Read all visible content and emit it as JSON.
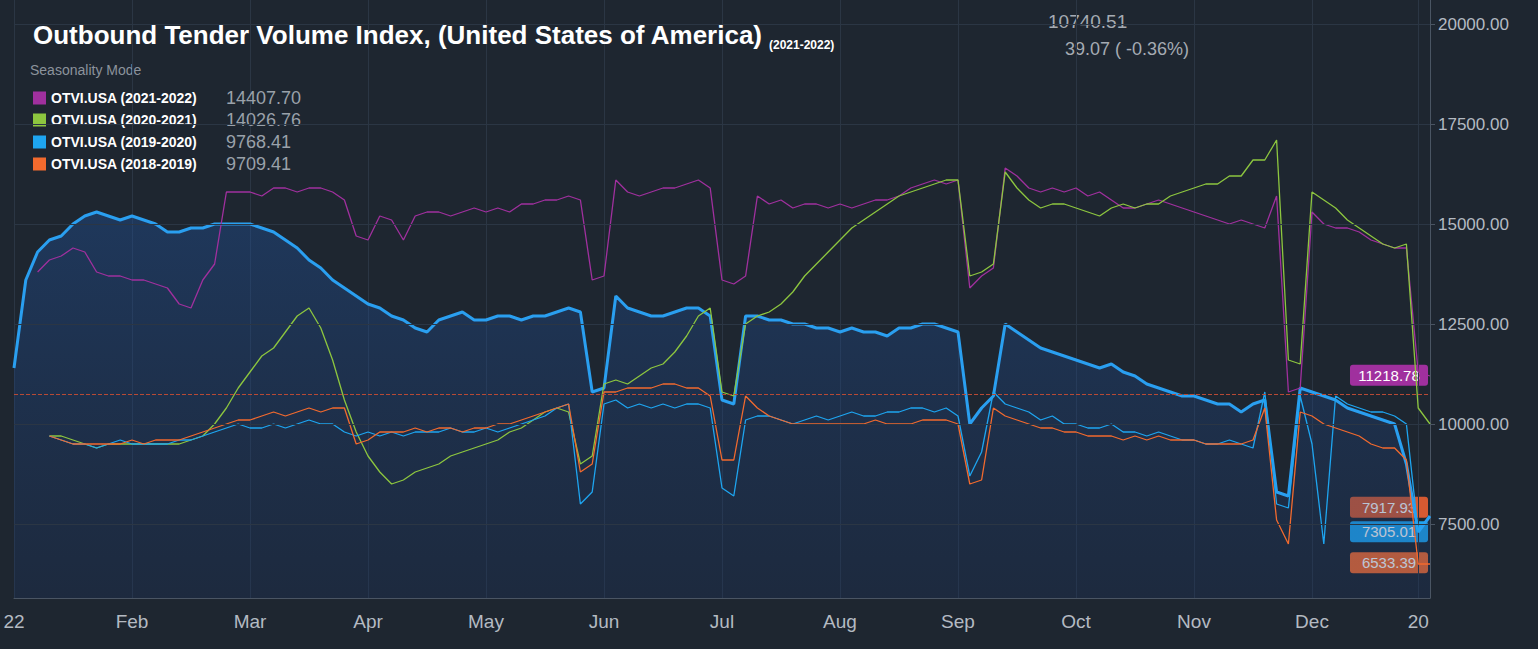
{
  "chart_data": {
    "type": "line",
    "title": "Outbound Tender Volume Index, (United States of America)",
    "subtitle": "(2021-2022)",
    "current_value": 10740.51,
    "change": "39.07 ( -0.36%)",
    "legend_title": "Seasonality Mode",
    "legend": "top-left",
    "grid": true,
    "categories": [
      "22",
      null,
      null,
      null,
      null,
      null,
      null,
      null,
      null,
      null,
      "Feb",
      null,
      null,
      null,
      null,
      null,
      null,
      null,
      null,
      null,
      "Mar",
      null,
      null,
      null,
      null,
      null,
      null,
      null,
      null,
      null,
      "Apr",
      null,
      null,
      null,
      null,
      null,
      null,
      null,
      null,
      null,
      "May",
      null,
      null,
      null,
      null,
      null,
      null,
      null,
      null,
      null,
      "Jun",
      null,
      null,
      null,
      null,
      null,
      null,
      null,
      null,
      null,
      "Jul",
      null,
      null,
      null,
      null,
      null,
      null,
      null,
      null,
      null,
      "Aug",
      null,
      null,
      null,
      null,
      null,
      null,
      null,
      null,
      null,
      "Sep",
      null,
      null,
      null,
      null,
      null,
      null,
      null,
      null,
      null,
      "Oct",
      null,
      null,
      null,
      null,
      null,
      null,
      null,
      null,
      null,
      "Nov",
      null,
      null,
      null,
      null,
      null,
      null,
      null,
      null,
      null,
      "Dec",
      null,
      null,
      null,
      null,
      null,
      null,
      null,
      null,
      "20",
      null
    ],
    "ylim": [
      5650,
      20600
    ],
    "yticks": [
      {
        "value": 7500,
        "label": "7500.00"
      },
      {
        "value": 10000,
        "label": "10000.00"
      },
      {
        "value": 12500,
        "label": "12500.00"
      },
      {
        "value": 15000,
        "label": "15000.00"
      },
      {
        "value": 17500,
        "label": "17500.00"
      },
      {
        "value": 20000,
        "label": "20000.00"
      }
    ],
    "series": [
      {
        "type": "area",
        "color": "#2a9ff0",
        "end_label": {
          "value": 7917.93,
          "label": "7917.93"
        },
        "values": [
          11400,
          13600,
          14300,
          14600,
          14700,
          15000,
          15200,
          15300,
          15200,
          15100,
          15200,
          15100,
          15000,
          14800,
          14800,
          14900,
          14900,
          15000,
          15000,
          15000,
          15000,
          14900,
          14800,
          14600,
          14400,
          14100,
          13900,
          13600,
          13400,
          13200,
          13000,
          12900,
          12700,
          12600,
          12400,
          12300,
          12600,
          12700,
          12800,
          12600,
          12600,
          12700,
          12700,
          12600,
          12700,
          12700,
          12800,
          12900,
          12800,
          10800,
          10900,
          13200,
          12900,
          12800,
          12700,
          12700,
          12800,
          12900,
          12900,
          12700,
          10600,
          10500,
          12700,
          12700,
          12600,
          12600,
          12500,
          12500,
          12400,
          12400,
          12300,
          12400,
          12300,
          12300,
          12200,
          12400,
          12400,
          12500,
          12500,
          12400,
          12300,
          10000,
          10400,
          10700,
          12500,
          12300,
          12100,
          11900,
          11800,
          11700,
          11600,
          11500,
          11400,
          11500,
          11300,
          11200,
          11000,
          10900,
          10800,
          10700,
          10700,
          10600,
          10500,
          10500,
          10300,
          10500,
          10600,
          8300,
          8200,
          10900,
          10800,
          10700,
          10600,
          10400,
          10300,
          10200,
          10100,
          10000,
          9000,
          7300,
          7700
        ]
      },
      {
        "type": "line",
        "name": "OTVI.USA (2021-2022)",
        "color": "#a0309e",
        "legend_value": {
          "value": 14407.7,
          "label": "14407.70"
        },
        "end_label": {
          "value": 11218.78,
          "label": "11218.78"
        },
        "values": [
          null,
          null,
          13800,
          14100,
          14200,
          14400,
          14300,
          13800,
          13700,
          13700,
          13600,
          13600,
          13500,
          13400,
          13000,
          12900,
          13600,
          14000,
          15800,
          15800,
          15800,
          15700,
          15900,
          15900,
          15800,
          15900,
          15900,
          15800,
          15600,
          14700,
          14600,
          15200,
          15100,
          14600,
          15200,
          15300,
          15300,
          15200,
          15300,
          15400,
          15300,
          15400,
          15300,
          15500,
          15500,
          15600,
          15600,
          15700,
          15600,
          13600,
          13700,
          16100,
          15800,
          15700,
          15800,
          15900,
          15900,
          16000,
          16100,
          15900,
          13600,
          13500,
          13700,
          15700,
          15500,
          15600,
          15400,
          15500,
          15500,
          15400,
          15500,
          15400,
          15500,
          15600,
          15600,
          15700,
          15900,
          16000,
          16100,
          16000,
          16100,
          13400,
          13700,
          13900,
          16400,
          16200,
          15900,
          15800,
          15900,
          15800,
          15900,
          15700,
          15800,
          15600,
          15400,
          15400,
          15500,
          15600,
          15500,
          15400,
          15300,
          15200,
          15100,
          15000,
          15100,
          15000,
          14900,
          15700,
          10800,
          10900,
          15300,
          15000,
          14900,
          14900,
          14800,
          14600,
          14500,
          14400,
          14400,
          11300,
          11200
        ]
      },
      {
        "type": "line",
        "name": "OTVI.USA (2020-2021)",
        "color": "#8dc63f",
        "legend_value": {
          "value": 14026.76,
          "label": "14026.76"
        },
        "values": [
          null,
          null,
          null,
          9700,
          9700,
          9600,
          9500,
          9400,
          9500,
          9500,
          9500,
          9500,
          9500,
          9500,
          9500,
          9600,
          9700,
          10000,
          10400,
          10900,
          11300,
          11700,
          11900,
          12300,
          12700,
          12900,
          12400,
          11600,
          10600,
          9800,
          9200,
          8800,
          8500,
          8600,
          8800,
          8900,
          9000,
          9200,
          9300,
          9400,
          9500,
          9600,
          9800,
          9900,
          10100,
          10300,
          10400,
          10300,
          9000,
          9200,
          11000,
          11100,
          11000,
          11200,
          11400,
          11500,
          11800,
          12200,
          12700,
          12900,
          10800,
          10700,
          12500,
          12700,
          12800,
          13000,
          13300,
          13700,
          14000,
          14300,
          14600,
          14900,
          15100,
          15300,
          15500,
          15700,
          15800,
          15900,
          16000,
          16100,
          16100,
          13700,
          13800,
          14000,
          16300,
          15900,
          15600,
          15400,
          15500,
          15500,
          15400,
          15300,
          15200,
          15400,
          15500,
          15400,
          15500,
          15500,
          15700,
          15800,
          15900,
          16000,
          16000,
          16200,
          16200,
          16600,
          16600,
          17100,
          11600,
          11500,
          15800,
          15600,
          15400,
          15100,
          14900,
          14700,
          14500,
          14400,
          14500,
          10400,
          10000
        ]
      },
      {
        "type": "line",
        "name": "OTVI.USA (2019-2020)",
        "color": "#1ea5f0",
        "legend_value": {
          "value": 9768.41,
          "label": "9768.41"
        },
        "end_label": {
          "value": 7305.01,
          "label": "7305.01"
        },
        "values": [
          null,
          null,
          null,
          9700,
          9600,
          9500,
          9500,
          9400,
          9500,
          9600,
          9500,
          9500,
          9500,
          9500,
          9600,
          9600,
          9700,
          9800,
          9900,
          10000,
          9900,
          9900,
          10000,
          9900,
          10000,
          10100,
          10000,
          10000,
          9800,
          9700,
          9800,
          9700,
          9800,
          9700,
          9800,
          9800,
          9800,
          9900,
          9800,
          9800,
          9900,
          9800,
          9900,
          10000,
          10100,
          10200,
          10400,
          10500,
          8000,
          8300,
          10500,
          10600,
          10400,
          10500,
          10400,
          10500,
          10400,
          10500,
          10500,
          10400,
          8400,
          8200,
          10100,
          10200,
          10200,
          10100,
          10000,
          10100,
          10200,
          10100,
          10200,
          10300,
          10200,
          10200,
          10300,
          10300,
          10400,
          10400,
          10300,
          10400,
          10200,
          8700,
          9300,
          10800,
          10500,
          10400,
          10300,
          10100,
          10200,
          10000,
          10000,
          9900,
          9900,
          10000,
          9800,
          9800,
          9700,
          9800,
          9700,
          9600,
          9600,
          9500,
          9500,
          9600,
          9500,
          9400,
          10800,
          8000,
          7900,
          10700,
          9500,
          7000,
          10700,
          10500,
          10400,
          10300,
          10300,
          10200,
          10000,
          7300,
          null
        ]
      },
      {
        "type": "line",
        "name": "OTVI.USA (2018-2019)",
        "color": "#f26a2e",
        "legend_value": {
          "value": 9709.41,
          "label": "9709.41"
        },
        "end_label": {
          "value": 6533.39,
          "label": "6533.39"
        },
        "values": [
          null,
          null,
          null,
          9700,
          9600,
          9500,
          9500,
          9500,
          9500,
          9500,
          9600,
          9500,
          9600,
          9600,
          9600,
          9700,
          9800,
          9900,
          10000,
          10100,
          10100,
          10200,
          10300,
          10200,
          10300,
          10400,
          10300,
          10400,
          10400,
          9500,
          9600,
          9800,
          9800,
          9800,
          9900,
          9800,
          9900,
          9900,
          9800,
          9900,
          9900,
          10000,
          10000,
          10100,
          10200,
          10300,
          10400,
          10500,
          8800,
          9000,
          10800,
          10800,
          10900,
          10900,
          10900,
          11000,
          11000,
          10900,
          10900,
          10700,
          9100,
          9100,
          10700,
          10400,
          10200,
          10100,
          10000,
          10000,
          10000,
          10000,
          10000,
          10000,
          10000,
          10100,
          10000,
          10000,
          10000,
          10100,
          10100,
          10100,
          10000,
          8500,
          8600,
          10400,
          10200,
          10100,
          10000,
          9900,
          9900,
          9800,
          9800,
          9700,
          9700,
          9700,
          9600,
          9700,
          9600,
          9700,
          9600,
          9600,
          9600,
          9500,
          9500,
          9500,
          9500,
          9600,
          10400,
          7600,
          7000,
          10300,
          10200,
          10000,
          9900,
          9800,
          9700,
          9500,
          9400,
          9400,
          9100,
          6500,
          6500
        ]
      }
    ]
  }
}
